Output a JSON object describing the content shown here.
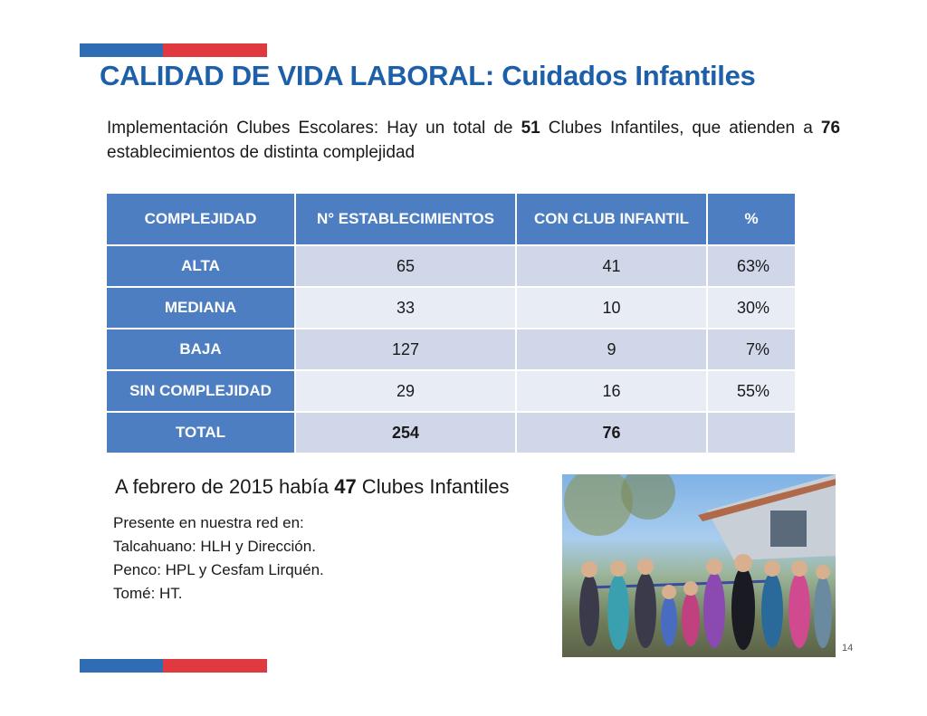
{
  "title": "CALIDAD DE VIDA LABORAL: Cuidados Infantiles",
  "intro": {
    "part1": "Implementación Clubes Escolares: Hay un total de ",
    "clubs_total": "51",
    "part2": " Clubes Infantiles, que atienden a ",
    "establishments_total": "76",
    "part3": " establecimientos de distinta complejidad"
  },
  "table": {
    "headers": [
      "COMPLEJIDAD",
      "N° ESTABLECIMIENTOS",
      "CON CLUB INFANTIL",
      "%"
    ],
    "rows": [
      {
        "label": "ALTA",
        "establecimientos": "65",
        "con_club": "41",
        "pct": "63%"
      },
      {
        "label": "MEDIANA",
        "establecimientos": "33",
        "con_club": "10",
        "pct": "30%"
      },
      {
        "label": "BAJA",
        "establecimientos": "127",
        "con_club": "9",
        "pct": "7%"
      },
      {
        "label": "SIN COMPLEJIDAD",
        "establecimientos": "29",
        "con_club": "16",
        "pct": "55%"
      }
    ],
    "total": {
      "label": "TOTAL",
      "establecimientos": "254",
      "con_club": "76",
      "pct": ""
    }
  },
  "subhead": {
    "part1": "A febrero de 2015 había ",
    "count": "47",
    "part2": " Clubes Infantiles"
  },
  "places": [
    "Presente en nuestra red en:",
    "Talcahuano: HLH y Dirección.",
    "Penco: HPL y Cesfam Lirquén.",
    "Tomé: HT."
  ],
  "page_number": "14",
  "colors": {
    "brand_blue": "#2e6db3",
    "brand_red": "#e0393f",
    "title_blue": "#1d5fa8",
    "table_header": "#4d7ec2",
    "row_dark": "#cfd7e8",
    "row_light": "#e8ecf5"
  }
}
